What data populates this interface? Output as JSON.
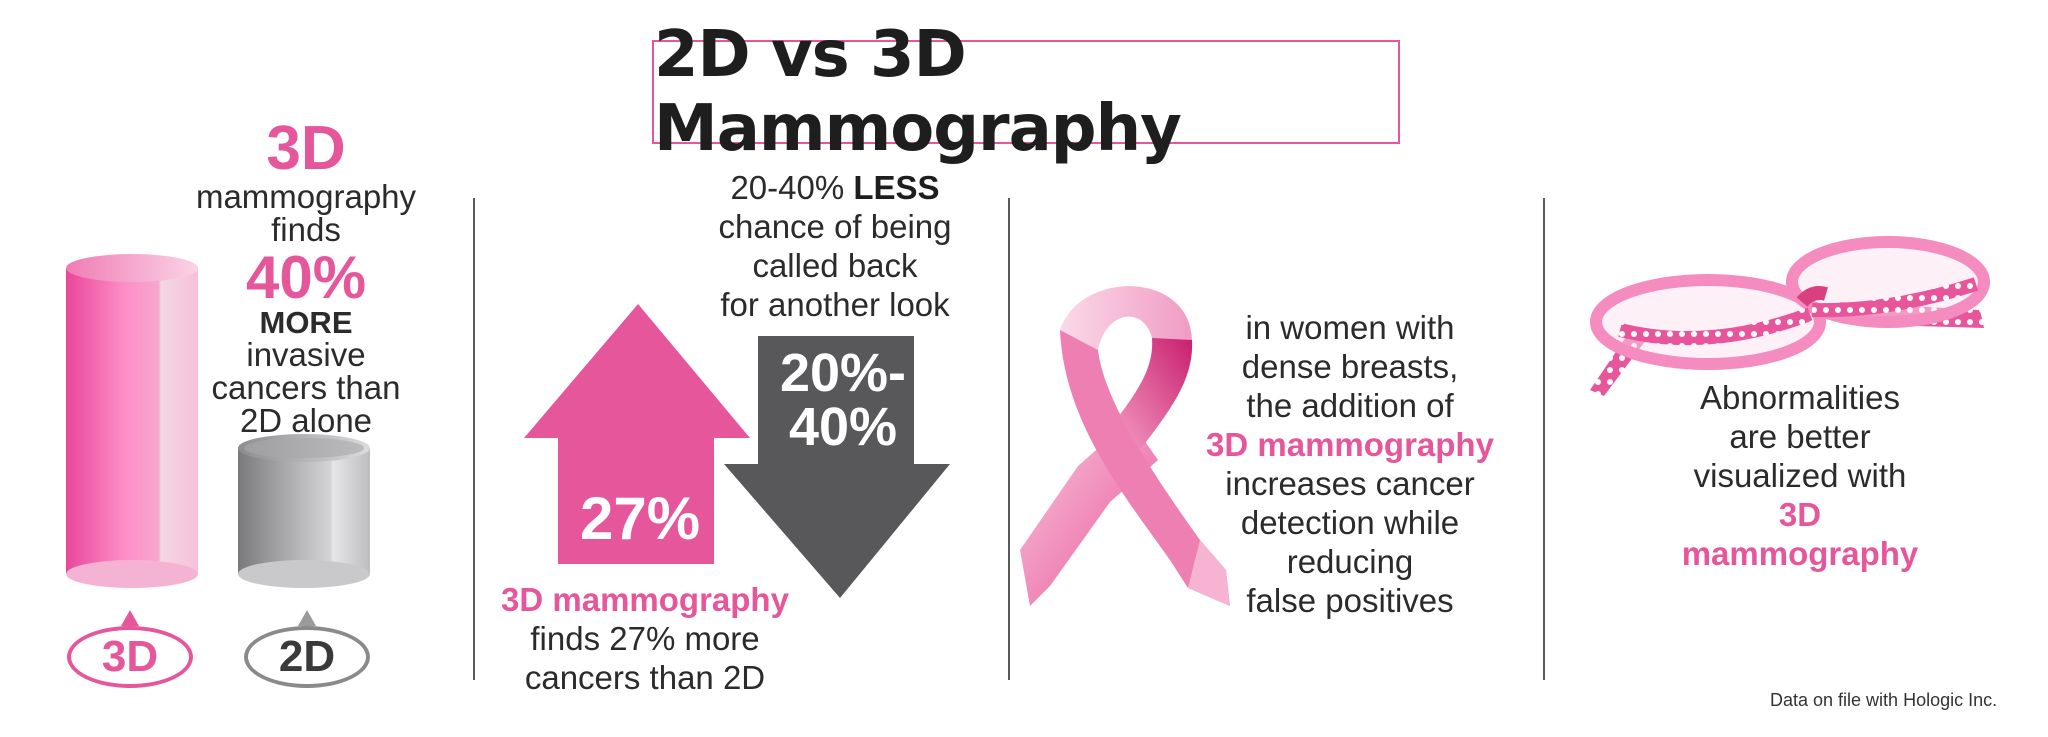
{
  "title": "2D vs 3D Mammography",
  "section_3d_finds": {
    "heading": "3D",
    "line1": "mammography",
    "line2": "finds",
    "percent": "40%",
    "emphasis": "MORE",
    "line3": "invasive",
    "line4": "cancers than",
    "line5": "2D alone",
    "badge_3d": "3D",
    "badge_2d": "2D"
  },
  "section_arrows": {
    "top_prefix": "20-40%",
    "top_emphasis": "LESS",
    "top_line2": "chance of being",
    "top_line3": "called back",
    "top_line4": "for another look",
    "up_arrow_value": "27%",
    "down_arrow_value_line1": "20%-",
    "down_arrow_value_line2": "40%",
    "bottom_highlight": "3D mammography",
    "bottom_line2": "finds 27% more",
    "bottom_line3": "cancers than 2D"
  },
  "section_dense": {
    "line1": "in women with",
    "line2": "dense breasts,",
    "line3": "the addition of",
    "highlight": "3D mammography",
    "line5": "increases cancer",
    "line6": "detection while",
    "line7": "reducing",
    "line8": "false positives"
  },
  "section_glasses": {
    "line1": "Abnormalities",
    "line2": "are better",
    "line3": "visualized with",
    "highlight1": "3D",
    "highlight2": "mammography"
  },
  "footnote": "Data on file with Hologic  Inc.",
  "colors": {
    "accent": "#e6569a",
    "dark_gray": "#58585a",
    "cylinder_gray": "#9a9a9a"
  },
  "icons": [
    "cylinder-3d-icon",
    "cylinder-2d-icon",
    "up-arrow-icon",
    "down-arrow-icon",
    "pink-ribbon-icon",
    "polka-dot-glasses-icon"
  ]
}
